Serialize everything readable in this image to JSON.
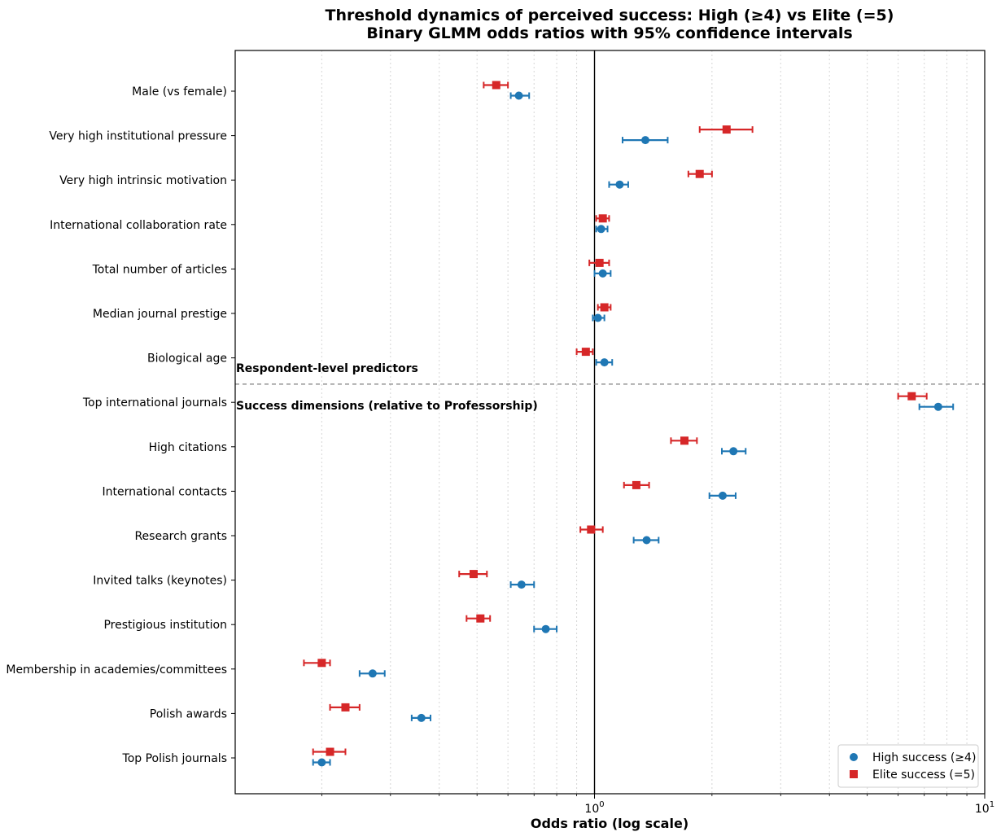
{
  "chart_data": {
    "type": "scatter",
    "title": "Threshold dynamics of perceived success: High (≥4) vs Elite (=5)",
    "subtitle": "Binary GLMM odds ratios with 95% confidence intervals",
    "xlabel": "Odds ratio (log scale)",
    "ylabel": "",
    "xscale": "log",
    "xlim": [
      0.12,
      10
    ],
    "xticks": [
      1,
      10
    ],
    "xtick_labels": [
      {
        "base": "10",
        "exp": "0"
      },
      {
        "base": "10",
        "exp": "1"
      }
    ],
    "reference_line": 1,
    "grid": "vertical minor gridlines (dotted)",
    "legend_position": "lower-right",
    "section_labels": [
      "Respondent-level predictors",
      "Success dimensions (relative to Professorship)"
    ],
    "categories": [
      "Male (vs female)",
      "Very high institutional pressure",
      "Very high intrinsic motivation",
      "International collaboration rate",
      "Total number of articles",
      "Median journal prestige",
      "Biological age",
      "Top international journals",
      "High citations",
      "International contacts",
      "Research grants",
      "Invited talks (keynotes)",
      "Prestigious institution",
      "Membership in academies/committees",
      "Polish awards",
      "Top Polish journals"
    ],
    "series": [
      {
        "name": "High success (≥4)",
        "color": "#1f77b4",
        "marker": "circle",
        "values": [
          0.64,
          1.35,
          1.16,
          1.04,
          1.05,
          1.02,
          1.06,
          7.6,
          2.27,
          2.13,
          1.36,
          0.65,
          0.75,
          0.27,
          0.36,
          0.2
        ],
        "ci_low": [
          0.61,
          1.18,
          1.09,
          1.01,
          1.0,
          0.99,
          1.01,
          6.8,
          2.12,
          1.97,
          1.26,
          0.61,
          0.7,
          0.25,
          0.34,
          0.19
        ],
        "ci_high": [
          0.68,
          1.54,
          1.22,
          1.08,
          1.1,
          1.06,
          1.11,
          8.3,
          2.44,
          2.3,
          1.46,
          0.7,
          0.8,
          0.29,
          0.38,
          0.21
        ]
      },
      {
        "name": "Elite success (=5)",
        "color": "#d62728",
        "marker": "square",
        "values": [
          0.56,
          2.18,
          1.86,
          1.05,
          1.03,
          1.06,
          0.95,
          6.5,
          1.7,
          1.28,
          0.98,
          0.49,
          0.51,
          0.2,
          0.23,
          0.21
        ],
        "ci_low": [
          0.52,
          1.86,
          1.74,
          1.01,
          0.97,
          1.02,
          0.9,
          6.0,
          1.57,
          1.19,
          0.92,
          0.45,
          0.47,
          0.18,
          0.21,
          0.19
        ],
        "ci_high": [
          0.6,
          2.54,
          2.0,
          1.09,
          1.09,
          1.1,
          0.99,
          7.1,
          1.83,
          1.38,
          1.05,
          0.53,
          0.54,
          0.21,
          0.25,
          0.23
        ]
      }
    ]
  }
}
